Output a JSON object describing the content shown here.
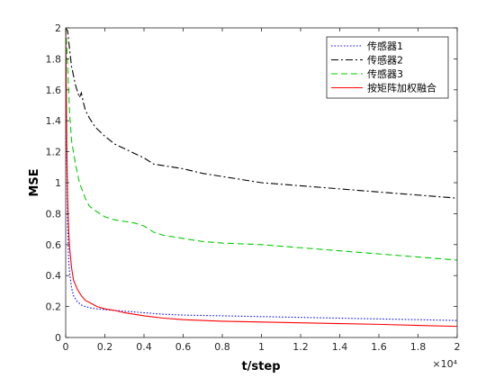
{
  "chart_data": {
    "type": "line",
    "title": "",
    "xlabel": "t/step",
    "ylabel": "MSE",
    "x_exponent_label": "×10⁴",
    "xlim": [
      0,
      2
    ],
    "ylim": [
      0,
      2
    ],
    "x_ticks": [
      0,
      0.2,
      0.4,
      0.6,
      0.8,
      1,
      1.2,
      1.4,
      1.6,
      1.8,
      2
    ],
    "x_tick_labels": [
      "0",
      "0.2",
      "0.4",
      "0.6",
      "0.8",
      "1",
      "1.2",
      "1.4",
      "1.6",
      "1.8",
      "2"
    ],
    "y_ticks": [
      0,
      0.2,
      0.4,
      0.6,
      0.8,
      1,
      1.2,
      1.4,
      1.6,
      1.8,
      2
    ],
    "y_tick_labels": [
      "0",
      "0.2",
      "0.4",
      "0.6",
      "0.8",
      "1",
      "1.2",
      "1.4",
      "1.6",
      "1.8",
      "2"
    ],
    "grid": false,
    "legend_position": "top-right",
    "series": [
      {
        "name": "传感器1",
        "color": "#0000ff",
        "style": "dotted",
        "x": [
          0,
          0.005,
          0.01,
          0.015,
          0.02,
          0.03,
          0.04,
          0.06,
          0.08,
          0.1,
          0.13,
          0.16,
          0.2,
          0.25,
          0.3,
          0.4,
          0.5,
          0.6,
          0.8,
          1.0,
          1.2,
          1.4,
          1.6,
          1.8,
          2.0
        ],
        "values": [
          2.0,
          1.2,
          0.72,
          0.5,
          0.42,
          0.32,
          0.27,
          0.23,
          0.21,
          0.2,
          0.19,
          0.185,
          0.18,
          0.175,
          0.17,
          0.16,
          0.15,
          0.145,
          0.14,
          0.135,
          0.13,
          0.125,
          0.12,
          0.115,
          0.11
        ]
      },
      {
        "name": "传感器2",
        "color": "#000000",
        "style": "dashdot",
        "x": [
          0,
          0.01,
          0.02,
          0.03,
          0.05,
          0.07,
          0.08,
          0.09,
          0.1,
          0.12,
          0.15,
          0.2,
          0.25,
          0.3,
          0.35,
          0.4,
          0.45,
          0.5,
          0.6,
          0.7,
          0.8,
          0.9,
          1.0,
          1.2,
          1.4,
          1.6,
          1.8,
          2.0
        ],
        "values": [
          2.0,
          1.98,
          1.86,
          1.75,
          1.63,
          1.55,
          1.58,
          1.52,
          1.47,
          1.42,
          1.36,
          1.3,
          1.25,
          1.22,
          1.19,
          1.16,
          1.12,
          1.11,
          1.09,
          1.06,
          1.04,
          1.02,
          1.0,
          0.98,
          0.96,
          0.94,
          0.92,
          0.9
        ]
      },
      {
        "name": "传感器3",
        "color": "#00cc00",
        "style": "dashed",
        "x": [
          0,
          0.005,
          0.01,
          0.02,
          0.03,
          0.05,
          0.07,
          0.1,
          0.12,
          0.15,
          0.2,
          0.25,
          0.3,
          0.35,
          0.4,
          0.45,
          0.5,
          0.6,
          0.7,
          0.8,
          1.0,
          1.2,
          1.4,
          1.6,
          1.8,
          2.0
        ],
        "values": [
          2.0,
          1.9,
          1.75,
          1.45,
          1.27,
          1.12,
          1.0,
          0.9,
          0.85,
          0.82,
          0.78,
          0.76,
          0.75,
          0.74,
          0.72,
          0.68,
          0.66,
          0.64,
          0.62,
          0.61,
          0.6,
          0.58,
          0.56,
          0.54,
          0.52,
          0.5
        ]
      },
      {
        "name": "按矩阵加权融合",
        "color": "#ff0000",
        "style": "solid",
        "x": [
          0,
          0.003,
          0.006,
          0.01,
          0.015,
          0.02,
          0.03,
          0.04,
          0.06,
          0.08,
          0.1,
          0.13,
          0.16,
          0.2,
          0.25,
          0.3,
          0.4,
          0.5,
          0.6,
          0.7,
          0.8,
          1.0,
          1.2,
          1.4,
          1.6,
          1.8,
          2.0
        ],
        "values": [
          2.0,
          1.6,
          1.2,
          0.9,
          0.7,
          0.58,
          0.45,
          0.37,
          0.31,
          0.27,
          0.24,
          0.22,
          0.2,
          0.185,
          0.175,
          0.16,
          0.14,
          0.125,
          0.115,
          0.11,
          0.105,
          0.1,
          0.095,
          0.09,
          0.085,
          0.078,
          0.072
        ]
      }
    ]
  }
}
